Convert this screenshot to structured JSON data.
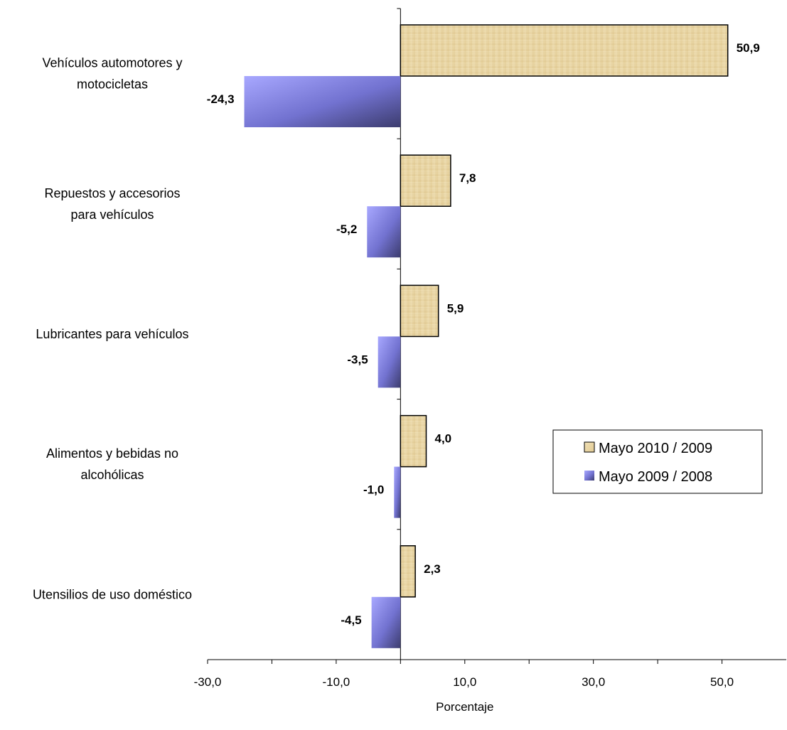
{
  "chart_data": {
    "type": "bar",
    "orientation": "horizontal",
    "categories": [
      [
        "Vehículos automotores y",
        "motocicletas"
      ],
      [
        "Repuestos y accesorios",
        "para vehículos"
      ],
      [
        "Lubricantes para vehículos"
      ],
      [
        "Alimentos y bebidas no",
        "alcohólicas"
      ],
      [
        "Utensilios de uso doméstico"
      ]
    ],
    "series": [
      {
        "name": "Mayo 2010 / 2009",
        "values": [
          50.9,
          7.8,
          5.9,
          4.0,
          2.3
        ],
        "labels": [
          "50,9",
          "7,8",
          "5,9",
          "4,0",
          "2,3"
        ],
        "color": "#e9d6a6"
      },
      {
        "name": "Mayo 2009 / 2008",
        "values": [
          -24.3,
          -5.2,
          -3.5,
          -1.0,
          -4.5
        ],
        "labels": [
          "-24,3",
          "-5,2",
          "-3,5",
          "-1,0",
          "-4,5"
        ],
        "color": "#8080e6"
      }
    ],
    "xlim": [
      -30,
      60
    ],
    "xticks": [
      -30,
      -10,
      10,
      30,
      50
    ],
    "xtick_labels": [
      "-30,0",
      "-10,0",
      "10,0",
      "30,0",
      "50,0"
    ],
    "xlabel": "Porcentaje",
    "ylabel": "",
    "title": "",
    "grid": false,
    "legend_position": "right"
  }
}
